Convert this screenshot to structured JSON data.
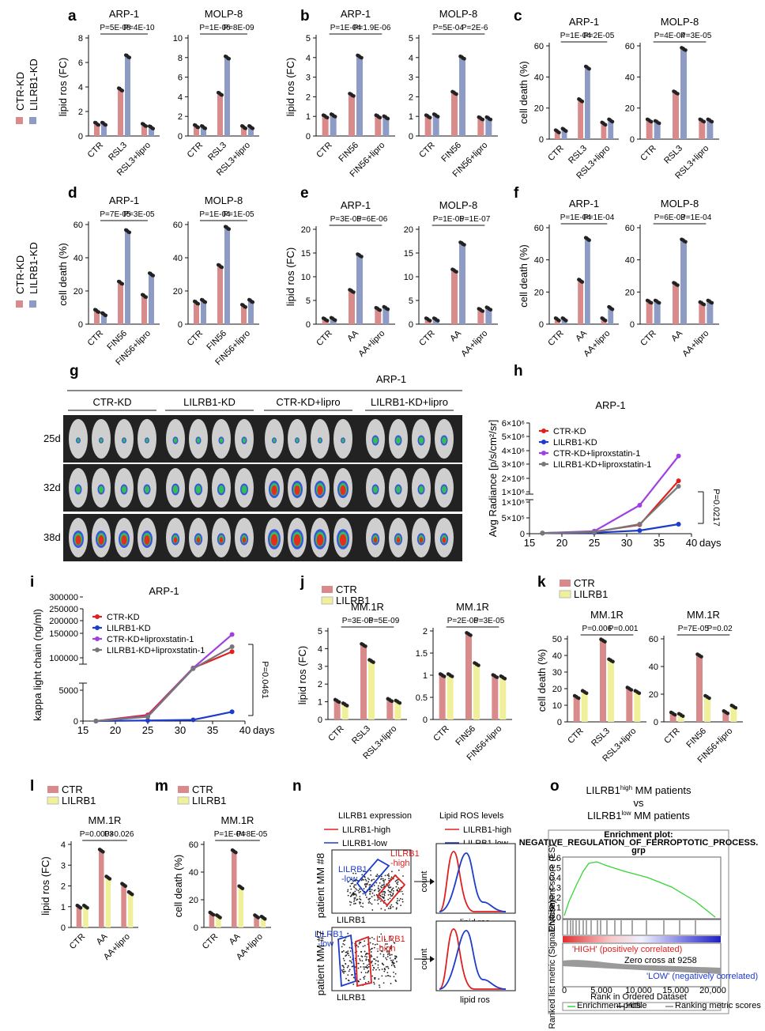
{
  "colors": {
    "ctr": "#d98a8a",
    "kd": "#8e9bc4",
    "lilrb1": "#f0f09a",
    "red": "#e02020",
    "blue": "#1e3ccc",
    "purple": "#a040e0",
    "gray": "#777777",
    "gsea_line": "#36d436"
  },
  "panels": {
    "a": {
      "label": "a",
      "legend": [
        "CTR-KD",
        "LILRB1-KD"
      ]
    },
    "b": {
      "label": "b"
    },
    "c": {
      "label": "c"
    },
    "d": {
      "label": "d",
      "legend": [
        "CTR-KD",
        "LILRB1-KD"
      ]
    },
    "e": {
      "label": "e"
    },
    "f": {
      "label": "f"
    },
    "g": {
      "label": "g"
    },
    "h": {
      "label": "h"
    },
    "i": {
      "label": "i"
    },
    "j": {
      "label": "j",
      "legend": [
        "CTR",
        "LILRB1"
      ]
    },
    "k": {
      "label": "k",
      "legend": [
        "CTR",
        "LILRB1"
      ]
    },
    "l": {
      "label": "l",
      "legend": [
        "CTR",
        "LILRB1"
      ]
    },
    "m": {
      "label": "m",
      "legend": [
        "CTR",
        "LILRB1"
      ]
    },
    "n": {
      "label": "n"
    },
    "o": {
      "label": "o"
    }
  },
  "chart_data": [
    {
      "id": "a1",
      "type": "bar",
      "title": "ARP-1",
      "ylabel": "lipid ros (FC)",
      "categories": [
        "CTR",
        "RSL3",
        "RSL3+lipro"
      ],
      "ylim": [
        0,
        8
      ],
      "yticks": [
        0,
        2,
        4,
        6,
        8
      ],
      "series": [
        {
          "name": "CTR-KD",
          "values": [
            1.0,
            3.8,
            0.9
          ]
        },
        {
          "name": "LILRB1-KD",
          "values": [
            1.0,
            6.5,
            0.7
          ]
        }
      ],
      "pvalues": [
        "P=5E-08",
        "P=4E-10"
      ]
    },
    {
      "id": "a2",
      "type": "bar",
      "title": "MOLP-8",
      "ylabel": "",
      "categories": [
        "CTR",
        "RSL3",
        "RSL3+lipro"
      ],
      "ylim": [
        0,
        10
      ],
      "yticks": [
        0,
        2,
        4,
        6,
        8,
        10
      ],
      "series": [
        {
          "name": "CTR-KD",
          "values": [
            1.0,
            4.3,
            0.9
          ]
        },
        {
          "name": "LILRB1-KD",
          "values": [
            0.9,
            8.0,
            0.9
          ]
        }
      ],
      "pvalues": [
        "P=1E-06",
        "P=8E-09"
      ]
    },
    {
      "id": "b1",
      "type": "bar",
      "title": "ARP-1",
      "ylabel": "lipid ros (FC)",
      "categories": [
        "CTR",
        "FIN56",
        "FIN56+lipro"
      ],
      "ylim": [
        0,
        5
      ],
      "yticks": [
        0,
        1,
        2,
        3,
        4,
        5
      ],
      "series": [
        {
          "name": "CTR-KD",
          "values": [
            1.0,
            2.1,
            1.0
          ]
        },
        {
          "name": "LILRB1-KD",
          "values": [
            1.05,
            4.05,
            0.95
          ]
        }
      ],
      "pvalues": [
        "P=1E-04",
        "P=1.9E-06"
      ]
    },
    {
      "id": "b2",
      "type": "bar",
      "title": "MOLP-8",
      "ylabel": "",
      "categories": [
        "CTR",
        "FIN56",
        "FIN56+lipro"
      ],
      "ylim": [
        0,
        5
      ],
      "yticks": [
        0,
        1,
        2,
        3,
        4,
        5
      ],
      "series": [
        {
          "name": "CTR-KD",
          "values": [
            1.0,
            2.2,
            0.9
          ]
        },
        {
          "name": "LILRB1-KD",
          "values": [
            1.05,
            4.0,
            0.9
          ]
        }
      ],
      "pvalues": [
        "P=5E-04",
        "P=2E-6"
      ]
    },
    {
      "id": "c1",
      "type": "bar",
      "title": "ARP-1",
      "ylabel": "cell death (%)",
      "categories": [
        "CTR",
        "RSL3",
        "RSL3+lipro"
      ],
      "ylim": [
        0,
        60
      ],
      "yticks": [
        0,
        20,
        40,
        60
      ],
      "series": [
        {
          "name": "CTR-KD",
          "values": [
            5,
            25,
            10
          ]
        },
        {
          "name": "LILRB1-KD",
          "values": [
            6,
            46,
            12
          ]
        }
      ],
      "pvalues": [
        "P=1E-04",
        "P=2E-05"
      ]
    },
    {
      "id": "c2",
      "type": "bar",
      "title": "MOLP-8",
      "ylabel": "",
      "categories": [
        "CTR",
        "RSL3",
        "RSL3+lipro"
      ],
      "ylim": [
        0,
        60
      ],
      "yticks": [
        0,
        20,
        40,
        60
      ],
      "series": [
        {
          "name": "CTR-KD",
          "values": [
            12,
            30,
            12
          ]
        },
        {
          "name": "LILRB1-KD",
          "values": [
            11,
            58,
            12
          ]
        }
      ],
      "pvalues": [
        "P=4E-04",
        "P=3E-05"
      ]
    },
    {
      "id": "d1",
      "type": "bar",
      "title": "ARP-1",
      "ylabel": "cell death (%)",
      "categories": [
        "CTR",
        "FIN56",
        "FIN56+lipro"
      ],
      "ylim": [
        0,
        60
      ],
      "yticks": [
        0,
        20,
        40,
        60
      ],
      "series": [
        {
          "name": "CTR-KD",
          "values": [
            8,
            25,
            17
          ]
        },
        {
          "name": "LILRB1-KD",
          "values": [
            6,
            56,
            30
          ]
        }
      ],
      "pvalues": [
        "P=7E-05",
        "P=3E-05"
      ]
    },
    {
      "id": "d2",
      "type": "bar",
      "title": "MOLP-8",
      "ylabel": "",
      "categories": [
        "CTR",
        "FIN56",
        "FIN56+lipro"
      ],
      "ylim": [
        0,
        60
      ],
      "yticks": [
        0,
        20,
        40,
        60
      ],
      "series": [
        {
          "name": "CTR-KD",
          "values": [
            13,
            35,
            11
          ]
        },
        {
          "name": "LILRB1-KD",
          "values": [
            14,
            58,
            14
          ]
        }
      ],
      "pvalues": [
        "P=1E-04",
        "P=1E-05"
      ]
    },
    {
      "id": "e1",
      "type": "bar",
      "title": "ARP-1",
      "ylabel": "lipid ros (FC)",
      "categories": [
        "CTR",
        "AA",
        "AA+lipro"
      ],
      "ylim": [
        0,
        20
      ],
      "yticks": [
        0,
        5,
        10,
        15,
        20
      ],
      "series": [
        {
          "name": "CTR-KD",
          "values": [
            1.0,
            7.0,
            3.2
          ]
        },
        {
          "name": "LILRB1-KD",
          "values": [
            1.1,
            14.5,
            3.4
          ]
        }
      ],
      "pvalues": [
        "P=3E-05",
        "P=6E-06"
      ]
    },
    {
      "id": "e2",
      "type": "bar",
      "title": "MOLP-8",
      "ylabel": "",
      "categories": [
        "CTR",
        "AA",
        "AA+lipro"
      ],
      "ylim": [
        0,
        20
      ],
      "yticks": [
        0,
        5,
        10,
        15,
        20
      ],
      "series": [
        {
          "name": "CTR-KD",
          "values": [
            1.0,
            11.3,
            3.0
          ]
        },
        {
          "name": "LILRB1-KD",
          "values": [
            1.0,
            17.0,
            3.3
          ]
        }
      ],
      "pvalues": [
        "P=1E-05",
        "P=1E-07"
      ]
    },
    {
      "id": "f1",
      "type": "bar",
      "title": "ARP-1",
      "ylabel": "cell death (%)",
      "categories": [
        "CTR",
        "AA",
        "AA+lipro"
      ],
      "ylim": [
        0,
        60
      ],
      "yticks": [
        0,
        20,
        40,
        60
      ],
      "series": [
        {
          "name": "CTR-KD",
          "values": [
            3,
            27,
            3
          ]
        },
        {
          "name": "LILRB1-KD",
          "values": [
            3,
            53,
            10
          ]
        }
      ],
      "pvalues": [
        "P=1E-04",
        "P=1E-04"
      ]
    },
    {
      "id": "f2",
      "type": "bar",
      "title": "MOLP-8",
      "ylabel": "",
      "categories": [
        "CTR",
        "AA",
        "AA+lipro"
      ],
      "ylim": [
        0,
        60
      ],
      "yticks": [
        0,
        20,
        40,
        60
      ],
      "series": [
        {
          "name": "CTR-KD",
          "values": [
            14,
            25,
            13
          ]
        },
        {
          "name": "LILRB1-KD",
          "values": [
            14,
            52,
            14
          ]
        }
      ],
      "pvalues": [
        "P=6E-03",
        "P=1E-04"
      ]
    },
    {
      "id": "j1",
      "type": "bar",
      "title": "MM.1R",
      "ylabel": "lipid ros (FC)",
      "categories": [
        "CTR",
        "RSL3",
        "RSL3+lipro"
      ],
      "ylim": [
        0,
        5
      ],
      "yticks": [
        0,
        1,
        2,
        3,
        4,
        5
      ],
      "series": [
        {
          "name": "CTR",
          "values": [
            1.05,
            4.2,
            1.1
          ]
        },
        {
          "name": "LILRB1",
          "values": [
            0.85,
            3.3,
            1.0
          ]
        }
      ],
      "pvalues": [
        "P=3E-06",
        "P=5E-09"
      ]
    },
    {
      "id": "j2",
      "type": "bar",
      "title": "MM.1R",
      "ylabel": "",
      "categories": [
        "CTR",
        "FIN56",
        "FIN56+lipro"
      ],
      "ylim": [
        0,
        2.0
      ],
      "yticks": [
        0,
        0.5,
        1.0,
        1.5,
        2.0
      ],
      "series": [
        {
          "name": "CTR",
          "values": [
            1.0,
            1.93,
            0.98
          ]
        },
        {
          "name": "LILRB1",
          "values": [
            1.0,
            1.25,
            0.95
          ]
        }
      ],
      "pvalues": [
        "P=2E-06",
        "P=3E-05"
      ]
    },
    {
      "id": "k1",
      "type": "bar",
      "title": "MM.1R",
      "ylabel": "cell death (%)",
      "categories": [
        "CTR",
        "RSL3",
        "RSL3+lipro"
      ],
      "ylim": [
        0,
        50
      ],
      "yticks": [
        0,
        10,
        20,
        30,
        40,
        50
      ],
      "series": [
        {
          "name": "CTR",
          "values": [
            15,
            49,
            20
          ]
        },
        {
          "name": "LILRB1",
          "values": [
            18,
            37,
            18
          ]
        }
      ],
      "pvalues": [
        "P=0.006",
        "P=0.001"
      ]
    },
    {
      "id": "k2",
      "type": "bar",
      "title": "MM.1R",
      "ylabel": "",
      "categories": [
        "CTR",
        "FIN56",
        "FIN56+lipro"
      ],
      "ylim": [
        0,
        60
      ],
      "yticks": [
        0,
        20,
        40,
        60
      ],
      "series": [
        {
          "name": "CTR",
          "values": [
            6,
            48,
            7
          ]
        },
        {
          "name": "LILRB1",
          "values": [
            5,
            18,
            11
          ]
        }
      ],
      "pvalues": [
        "P=7E-05",
        "P=0.02"
      ]
    },
    {
      "id": "l1",
      "type": "bar",
      "title": "MM.1R",
      "ylabel": "lipid ros (FC)",
      "categories": [
        "CTR",
        "AA",
        "AA+lipro"
      ],
      "ylim": [
        0,
        4
      ],
      "yticks": [
        0,
        1,
        2,
        3,
        4
      ],
      "series": [
        {
          "name": "CTR",
          "values": [
            1.0,
            3.7,
            2.05
          ]
        },
        {
          "name": "LILRB1",
          "values": [
            1.0,
            2.4,
            1.65
          ]
        }
      ],
      "pvalues": [
        "P=0.0003",
        "P=0.026"
      ]
    },
    {
      "id": "m1",
      "type": "bar",
      "title": "MM.1R",
      "ylabel": "cell death (%)",
      "categories": [
        "CTR",
        "AA",
        "AA+lipro"
      ],
      "ylim": [
        0,
        60
      ],
      "yticks": [
        0,
        20,
        40,
        60
      ],
      "series": [
        {
          "name": "CTR",
          "values": [
            10,
            55,
            8
          ]
        },
        {
          "name": "LILRB1",
          "values": [
            8,
            29,
            7
          ]
        }
      ],
      "pvalues": [
        "P=1E-04",
        "P=8E-05"
      ]
    },
    {
      "id": "h",
      "type": "line",
      "title": "ARP-1",
      "ylabel": "Avg Radiance [p/s/cm²/sr]",
      "xlabel": "days",
      "x": [
        17,
        25,
        32,
        38
      ],
      "xlim": [
        15,
        40
      ],
      "xticks": [
        15,
        20,
        25,
        30,
        35,
        40
      ],
      "ylim": [
        0,
        6000000
      ],
      "yticks": [
        "0",
        "5×10⁵",
        "1×10⁶",
        "1×10⁶",
        "2×10⁶",
        "3×10⁶",
        "4×10⁶",
        "5×10⁶",
        "6×10⁶"
      ],
      "series": [
        {
          "name": "CTR-KD",
          "values": [
            20000,
            60000,
            280000,
            1800000
          ]
        },
        {
          "name": "LILRB1-KD",
          "values": [
            15000,
            30000,
            100000,
            300000
          ]
        },
        {
          "name": "CTR-KD+liproxstatin-1",
          "values": [
            20000,
            80000,
            900000,
            3600000
          ]
        },
        {
          "name": "LILRB1-KD+liproxstatin-1",
          "values": [
            18000,
            50000,
            300000,
            1400000
          ]
        }
      ],
      "annotation": "P=0.0217"
    },
    {
      "id": "i",
      "type": "line",
      "title": "ARP-1",
      "ylabel": "kappa light chain (ng/ml)",
      "xlabel": "days",
      "x": [
        17,
        25,
        32,
        38
      ],
      "xlim": [
        15,
        40
      ],
      "xticks": [
        15,
        20,
        25,
        30,
        35,
        40
      ],
      "yticks": [
        "0",
        "5000",
        "100000",
        "150000",
        "200000",
        "250000",
        "300000"
      ],
      "series": [
        {
          "name": "CTR-KD",
          "values": [
            0,
            1000,
            70000,
            125000
          ]
        },
        {
          "name": "LILRB1-KD",
          "values": [
            0,
            100,
            200,
            1500
          ]
        },
        {
          "name": "CTR-KD+liproxstatin-1",
          "values": [
            0,
            800,
            70000,
            195000
          ]
        },
        {
          "name": "LILRB1-KD+liproxstatin-1",
          "values": [
            0,
            700,
            68000,
            145000
          ]
        }
      ],
      "annotation": "P=0.0461"
    }
  ],
  "panel_g": {
    "title": "ARP-1",
    "groups": [
      "CTR-KD",
      "LILRB1-KD",
      "CTR-KD+lipro",
      "LILRB1-KD+lipro"
    ],
    "days": [
      "25d",
      "32d",
      "38d"
    ]
  },
  "panel_n": {
    "legend1_title": "LILRB1 expression",
    "legend1": [
      "LILRB1-high",
      "LILRB1-low"
    ],
    "legend2_title": "Lipid ROS levels",
    "legend2": [
      "LILRB1-high",
      "LILRB1-low"
    ],
    "patients": [
      "patient MM #8",
      "patient MM #7"
    ],
    "xaxis": "LILRB1",
    "gate_low": [
      "LILRB1",
      "-low"
    ],
    "gate_high": [
      "LILRB1",
      "-high"
    ],
    "hist_y": "count",
    "hist_x": "lipid ros"
  },
  "panel_o": {
    "title_line1": [
      "LILRB1",
      "high",
      " MM patients"
    ],
    "vs": "vs",
    "title_line2": [
      "LILRB1",
      "low",
      " MM patients"
    ],
    "plot_title": "Enrichment plot:",
    "geneset": "NEGATIVE_REGULATION_OF_FERROPTOTIC_PROCESS.",
    "geneset2": "grp",
    "es_label": "Enrichment score (ES)",
    "es_ticks": [
      "0.6",
      "0.5",
      "0.4",
      "0.3",
      "0.2",
      "0.1",
      "0.0"
    ],
    "rank_label": "Ranked list metric (Signal2Noise)",
    "pos_text": "'HIGH' (positively correlated)",
    "neg_text": "'LOW' (negatively correlated)",
    "zero_cross": "Zero cross at 9258",
    "rank_ticks": [
      "0",
      "5,000",
      "10,000",
      "15,000",
      "20,000"
    ],
    "xlabel": "Rank in Ordered Dataset",
    "legend": [
      "Enrichment profile",
      "Hits",
      "Ranking metric scores"
    ]
  }
}
